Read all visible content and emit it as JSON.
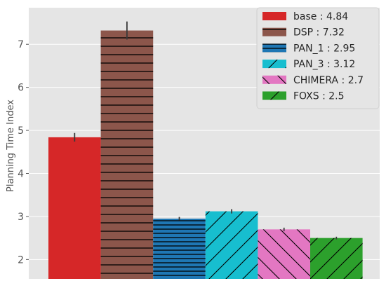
{
  "chart_data": {
    "type": "bar",
    "title": "",
    "xlabel": "",
    "ylabel": "Planning Time Index",
    "ylim": [
      1.55,
      7.85
    ],
    "yticks": [
      2,
      3,
      4,
      5,
      6,
      7
    ],
    "grid": true,
    "background": "#e5e5e5",
    "legend_position": "top-right",
    "series": [
      {
        "name": "base",
        "value": 4.84,
        "error": 0.1,
        "color": "#d62728",
        "hatch": "none"
      },
      {
        "name": "DSP",
        "value": 7.32,
        "error": 0.21,
        "color": "#8c564b",
        "hatch": "horizontal"
      },
      {
        "name": "PAN_1",
        "value": 2.95,
        "error": 0.04,
        "color": "#1f77b4",
        "hatch": "horizontal-dense"
      },
      {
        "name": "PAN_3",
        "value": 3.12,
        "error": 0.05,
        "color": "#17becf",
        "hatch": "forward-diagonal"
      },
      {
        "name": "CHIMERA",
        "value": 2.7,
        "error": 0.04,
        "color": "#e377c2",
        "hatch": "back-diagonal"
      },
      {
        "name": "FOXS",
        "value": 2.5,
        "error": 0.03,
        "color": "#2ca02c",
        "hatch": "forward-diagonal"
      }
    ],
    "legend_labels": [
      "base : 4.84",
      "DSP : 7.32",
      "PAN_1 : 2.95",
      "PAN_3 : 3.12",
      "CHIMERA : 2.7",
      "FOXS : 2.5"
    ]
  }
}
